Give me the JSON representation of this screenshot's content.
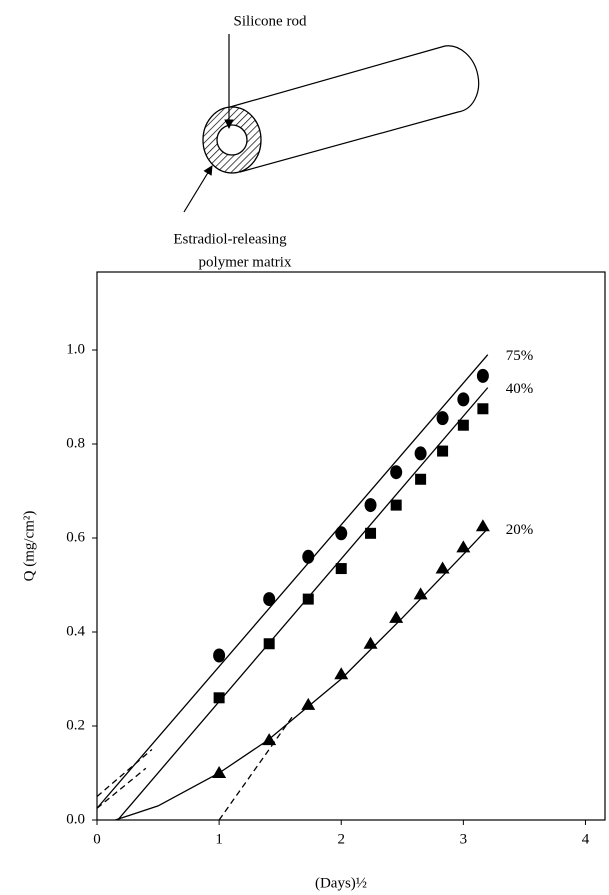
{
  "diagram": {
    "label_top": "Silicone rod",
    "label_bottom_1": "Estradiol-releasing",
    "label_bottom_2": "polymer matrix"
  },
  "chart_data": {
    "type": "scatter",
    "x_label": "(Days)½",
    "y_label": "Q  (mg/cm²)",
    "xlim": [
      0,
      4.16
    ],
    "ylim": [
      0,
      1.166
    ],
    "xticks": [
      0,
      1,
      2,
      3,
      4
    ],
    "yticks": [
      {
        "value": 0,
        "label": "0.0"
      },
      0.2,
      0.4,
      0.6,
      0.8,
      {
        "value": 1,
        "label": "1.0"
      }
    ],
    "series": [
      {
        "name": "75%",
        "color": "#000",
        "marker": "circle",
        "x": [
          1,
          1.41,
          1.73,
          2,
          2.24,
          2.45,
          2.65,
          2.83,
          3,
          3.16
        ],
        "values": [
          0.35,
          0.47,
          0.56,
          0.61,
          0.67,
          0.74,
          0.78,
          0.855,
          0.895,
          0.945
        ],
        "line_x": [
          0,
          3.2
        ],
        "line_values": [
          0.025,
          0.99
        ],
        "dashed_x": [
          0,
          0.45
        ],
        "dashed_values": [
          0.05,
          0.15
        ]
      },
      {
        "name": "40%",
        "color": "#000",
        "marker": "square",
        "x": [
          1,
          1.41,
          1.73,
          2,
          2.24,
          2.45,
          2.65,
          2.83,
          3,
          3.16
        ],
        "values": [
          0.26,
          0.375,
          0.47,
          0.535,
          0.61,
          0.67,
          0.725,
          0.785,
          0.84,
          0.875
        ],
        "line_x": [
          0.17,
          3.2
        ],
        "line_values": [
          0,
          0.92
        ],
        "dashed_x": [
          0,
          0.4
        ],
        "dashed_values": [
          0.025,
          0.11
        ]
      },
      {
        "name": "20%",
        "color": "#000",
        "marker": "triangle",
        "x": [
          1,
          1.41,
          1.73,
          2,
          2.24,
          2.45,
          2.65,
          2.83,
          3,
          3.16
        ],
        "values": [
          0.1,
          0.17,
          0.245,
          0.31,
          0.375,
          0.43,
          0.48,
          0.535,
          0.58,
          0.625
        ],
        "line_x": [
          0.15,
          0.5,
          1,
          1.4,
          1.7,
          2,
          2.5,
          3,
          3.2
        ],
        "line_values": [
          0,
          0.03,
          0.1,
          0.17,
          0.235,
          0.3,
          0.43,
          0.565,
          0.62
        ],
        "dashed_x": [
          1,
          1.6
        ],
        "dashed_values": [
          0,
          0.22
        ]
      }
    ]
  }
}
